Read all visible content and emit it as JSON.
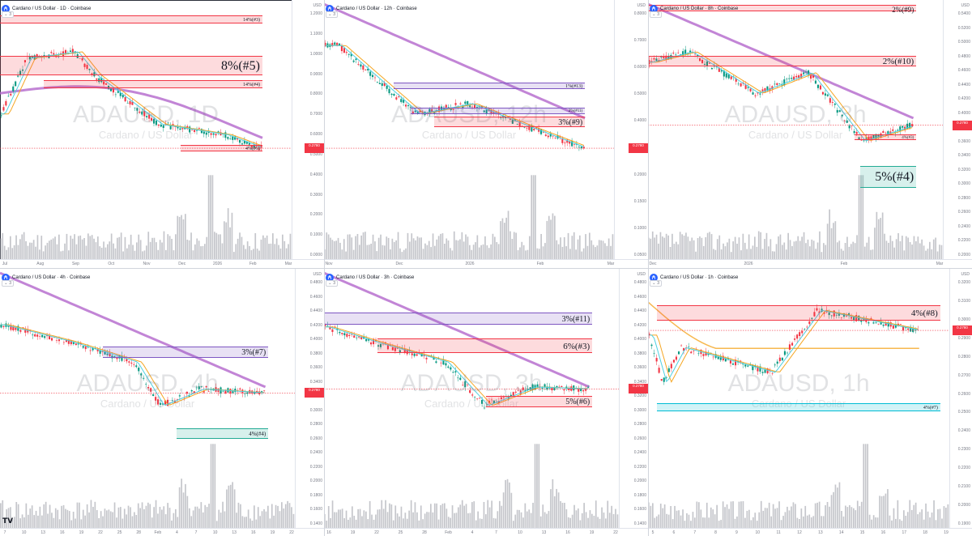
{
  "colors": {
    "red_zone": "#f23645",
    "green_zone": "#22ab94",
    "purple_zone": "#7e57c2",
    "blue_zone": "#00bcd4",
    "ma200": "#b366cc",
    "ema_orange": "#f5a623",
    "ema_cyan": "#4dd0e1",
    "volume": "#9598a1",
    "price_line": "#f23645"
  },
  "panels": [
    {
      "id": "p1",
      "title": "Cardano / US Dollar · 1D · Coinbase",
      "chip": "3",
      "wm_big": "ADAUSD, 1D",
      "wm_small": "Cardano / US Dollar",
      "unit": "USD",
      "ylabels": [
        "1.2000",
        "1.1000",
        "1.0000",
        "0.9000",
        "0.8000",
        "0.7000",
        "0.6000",
        "0.5000",
        "0.4000",
        "0.3000",
        "0.2000",
        "0.1000",
        "0.0000"
      ],
      "xlabels": [
        "Jul",
        "Aug",
        "Sep",
        "Oct",
        "Nov",
        "Dec",
        "2026",
        "Feb",
        "Mar"
      ],
      "price_tag": "0.2780",
      "zones": [
        {
          "label": "14%(#3)",
          "kind": "red"
        },
        {
          "label": "8%(#5)",
          "kind": "red"
        },
        {
          "label": "14%(#4)",
          "kind": "red"
        },
        {
          "label": "4%(#9)",
          "kind": "red"
        }
      ]
    },
    {
      "id": "p2",
      "title": "Cardano / US Dollar · 12h · Coinbase",
      "chip": "3",
      "wm_big": "ADAUSD, 12h",
      "wm_small": "Cardano / US Dollar",
      "unit": "USD",
      "ylabels": [
        "0.8000",
        "0.7000",
        "0.6000",
        "0.5000",
        "0.4000",
        "0.3000",
        "0.2000",
        "0.1500",
        "0.1000",
        "0.0500"
      ],
      "xlabels": [
        "Nov",
        "Dec",
        "2026",
        "Feb",
        "Mar"
      ],
      "price_tag": "0.2780",
      "zones": [
        {
          "label": "1%(#13)",
          "kind": "purple"
        },
        {
          "label": "2%(#11)",
          "kind": "purple"
        },
        {
          "label": "3%(#9)",
          "kind": "red"
        }
      ]
    },
    {
      "id": "p3",
      "title": "Cardano / US Dollar · 8h · Coinbase",
      "chip": "3",
      "wm_big": "ADAUSD, 8h",
      "wm_small": "Cardano / US Dollar",
      "unit": "USD",
      "ylabels": [
        "0.5400",
        "0.5200",
        "0.5000",
        "0.4800",
        "0.4600",
        "0.4400",
        "0.4200",
        "0.4000",
        "0.3800",
        "0.3600",
        "0.3400",
        "0.3200",
        "0.3000",
        "0.2800",
        "0.2600",
        "0.2400",
        "0.2200",
        "0.2000"
      ],
      "xlabels": [
        "Dec",
        "2026",
        "Feb",
        "Mar"
      ],
      "price_tag": "0.2780",
      "zones": [
        {
          "label": "2%(#9)",
          "kind": "red"
        },
        {
          "label": "2%(#10)",
          "kind": "red"
        },
        {
          "label": "4%(#3)",
          "kind": "red"
        },
        {
          "label": "5%(#4)",
          "kind": "green"
        }
      ]
    },
    {
      "id": "p4",
      "title": "Cardano / US Dollar · 4h · Coinbase",
      "chip": "3",
      "wm_big": "ADAUSD, 4h",
      "wm_small": "Cardano / US Dollar",
      "unit": "USD",
      "ylabels": [
        "0.4800",
        "0.4600",
        "0.4400",
        "0.4200",
        "0.4000",
        "0.3800",
        "0.3600",
        "0.3400",
        "0.3200",
        "0.3000",
        "0.2800",
        "0.2600",
        "0.2400",
        "0.2200",
        "0.2000",
        "0.1800",
        "0.1600",
        "0.1400"
      ],
      "xlabels": [
        "7",
        "10",
        "13",
        "16",
        "19",
        "22",
        "25",
        "28",
        "Feb",
        "4",
        "7",
        "10",
        "13",
        "16",
        "19",
        "22"
      ],
      "price_tag": "0.2780",
      "zones": [
        {
          "label": "3%(#7)",
          "kind": "purple"
        },
        {
          "label": "4%(#4)",
          "kind": "green"
        }
      ]
    },
    {
      "id": "p5",
      "title": "Cardano / US Dollar · 3h · Coinbase",
      "chip": "3",
      "wm_big": "ADAUSD, 3h",
      "wm_small": "Cardano / US Dollar",
      "unit": "USD",
      "ylabels": [
        "0.4800",
        "0.4600",
        "0.4400",
        "0.4200",
        "0.4000",
        "0.3800",
        "0.3600",
        "0.3400",
        "0.3200",
        "0.3000",
        "0.2800",
        "0.2600",
        "0.2400",
        "0.2200",
        "0.2000",
        "0.1800",
        "0.1600",
        "0.1400"
      ],
      "xlabels": [
        "16",
        "19",
        "22",
        "25",
        "28",
        "Feb",
        "4",
        "7",
        "10",
        "13",
        "16",
        "19",
        "22"
      ],
      "price_tag": "0.2780",
      "zones": [
        {
          "label": "3%(#11)",
          "kind": "purple"
        },
        {
          "label": "6%(#3)",
          "kind": "red"
        },
        {
          "label": "5%(#6)",
          "kind": "red"
        }
      ]
    },
    {
      "id": "p6",
      "title": "Cardano / US Dollar · 1h · Coinbase",
      "chip": "3",
      "wm_big": "ADAUSD, 1h",
      "wm_small": "Cardano / US Dollar",
      "unit": "USD",
      "ylabels": [
        "0.3200",
        "0.3100",
        "0.3000",
        "0.2900",
        "0.2800",
        "0.2700",
        "0.2600",
        "0.2500",
        "0.2400",
        "0.2300",
        "0.2200",
        "0.2100",
        "0.2000",
        "0.1900"
      ],
      "xlabels": [
        "5",
        "6",
        "7",
        "8",
        "9",
        "10",
        "11",
        "12",
        "13",
        "14",
        "15",
        "16",
        "17",
        "18",
        "19"
      ],
      "price_tag": "0.2780",
      "zones": [
        {
          "label": "4%(#8)",
          "kind": "red"
        },
        {
          "label": "4%(#7)",
          "kind": "blue"
        }
      ]
    }
  ]
}
